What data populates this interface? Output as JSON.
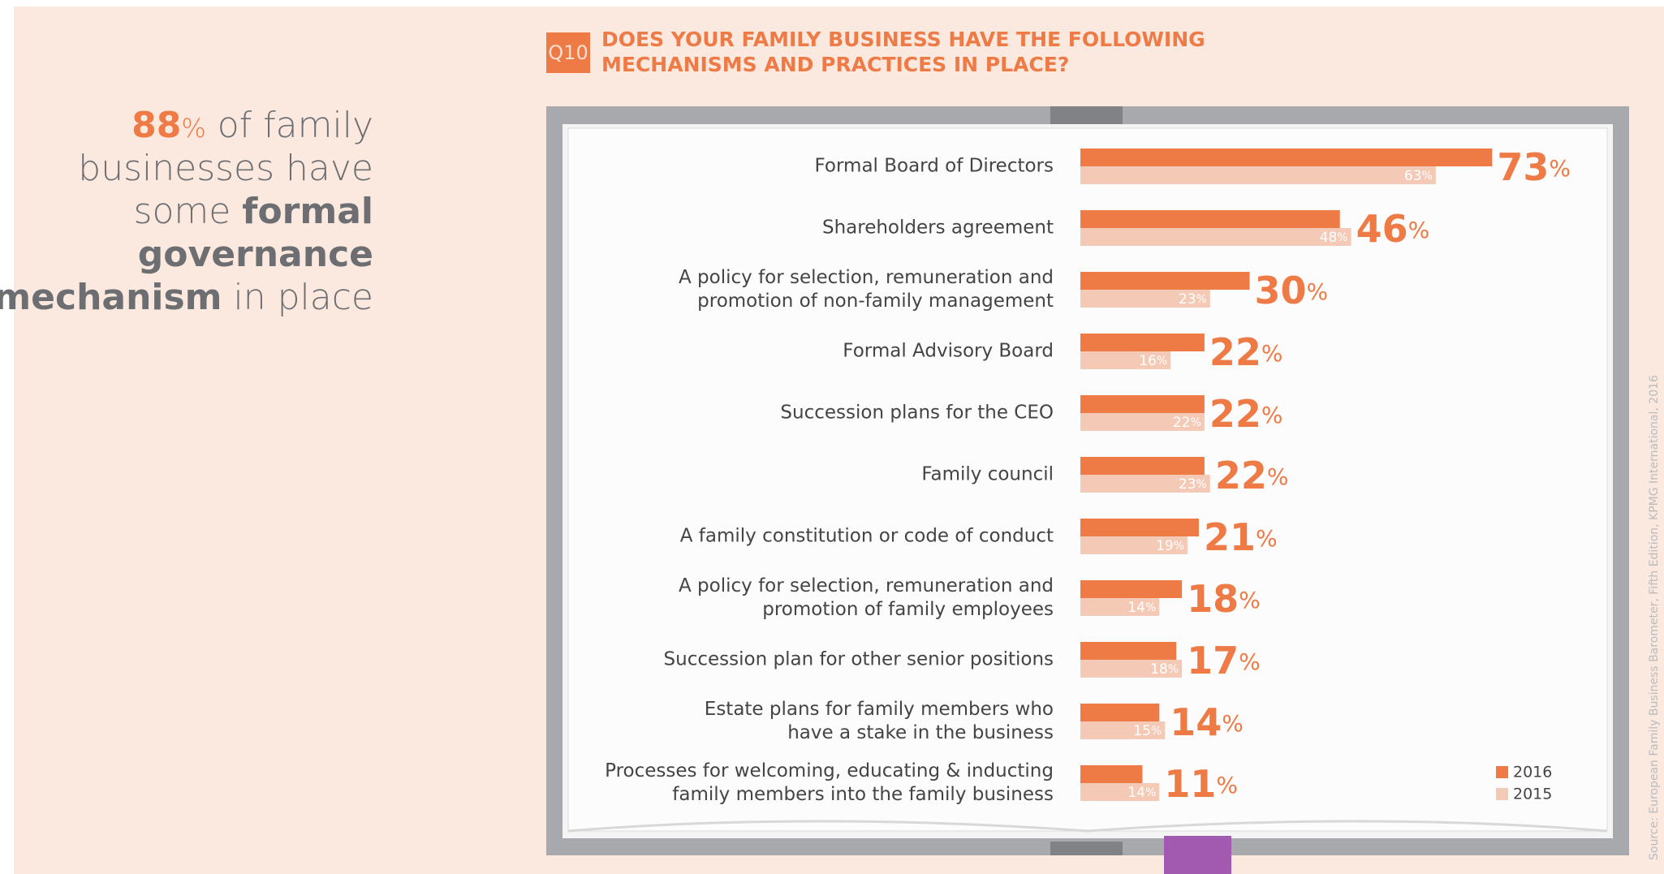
{
  "headline": {
    "number": "88",
    "percent": "%",
    "text1": " of family",
    "text2": "businesses have",
    "text3": "some ",
    "bold1": "formal",
    "bold2": "governance",
    "bold3": "mechanism",
    "text4": " in place"
  },
  "source": "Source: European Family Business Barometer, Fifth Edition, KPMG International, 2016",
  "chart_data": {
    "type": "bar",
    "orientation": "horizontal",
    "question_number": "Q10",
    "title_lines": [
      "DOES YOUR FAMILY BUSINESS HAVE THE FOLLOWING",
      "MECHANISMS AND PRACTICES IN PLACE?"
    ],
    "categories": [
      "Formal Board of Directors",
      "Shareholders agreement",
      "A policy for selection, remuneration and\npromotion of non-family management",
      "Formal Advisory Board",
      "Succession plans for the CEO",
      "Family council",
      "A family constitution or code of conduct",
      "A policy for selection, remuneration and\npromotion of family employees",
      "Succession plan for other senior positions",
      "Estate plans for family members who\nhave a stake in the business",
      "Processes for welcoming, educating & inducting\nfamily members into the family business"
    ],
    "series": [
      {
        "name": "2016",
        "color": "#ee7a45",
        "values": [
          73,
          46,
          30,
          22,
          22,
          22,
          21,
          18,
          17,
          14,
          11
        ],
        "value_labels": [
          "73%",
          "46%",
          "30%",
          "22%",
          "22%",
          "22%",
          "21%",
          "18%",
          "17%",
          "14%",
          "11%"
        ]
      },
      {
        "name": "2015",
        "color": "#f4cab7",
        "values": [
          63,
          48,
          23,
          16,
          22,
          23,
          19,
          14,
          18,
          15,
          14
        ],
        "value_labels": [
          "63%",
          "48%",
          "23%",
          "16%",
          "22%",
          "23%",
          "19%",
          "14%",
          "18%",
          "15%",
          "14%"
        ]
      }
    ],
    "legend": "bottom-right"
  }
}
